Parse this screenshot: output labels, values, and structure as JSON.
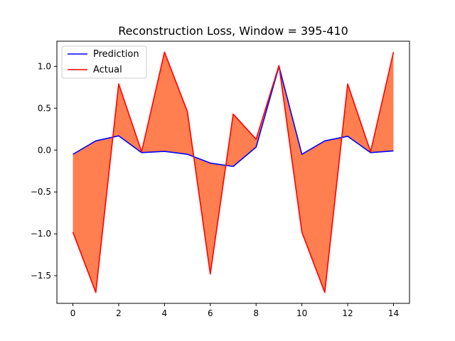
{
  "chart_data": {
    "type": "line",
    "title": "Reconstruction Loss, Window = 395-410",
    "xlabel": "",
    "ylabel": "",
    "x": [
      0,
      1,
      2,
      3,
      4,
      5,
      6,
      7,
      8,
      9,
      10,
      11,
      12,
      13,
      14
    ],
    "xlim": [
      -0.7,
      14.7
    ],
    "ylim": [
      -1.83,
      1.3
    ],
    "x_ticks": [
      0,
      2,
      4,
      6,
      8,
      10,
      12,
      14
    ],
    "x_tick_labels": [
      "0",
      "2",
      "4",
      "6",
      "8",
      "10",
      "12",
      "14"
    ],
    "y_ticks": [
      -1.5,
      -1.0,
      -0.5,
      0.0,
      0.5,
      1.0
    ],
    "y_tick_labels": [
      "−1.5",
      "−1.0",
      "−0.5",
      "0.0",
      "0.5",
      "1.0"
    ],
    "grid": false,
    "legend_position": "upper-left",
    "series": [
      {
        "name": "Prediction",
        "color": "#0000ff",
        "values": [
          -0.05,
          0.11,
          0.17,
          -0.03,
          -0.015,
          -0.05,
          -0.155,
          -0.195,
          0.035,
          1.0,
          -0.05,
          0.11,
          0.165,
          -0.03,
          -0.01
        ]
      },
      {
        "name": "Actual",
        "color": "#ff0000",
        "values": [
          -0.98,
          -1.7,
          0.79,
          -0.02,
          1.17,
          0.46,
          -1.48,
          0.43,
          0.13,
          1.01,
          -0.98,
          -1.7,
          0.79,
          -0.02,
          1.17
        ]
      }
    ],
    "fill_between": {
      "color": "#ff7f50",
      "series": [
        "Prediction",
        "Actual"
      ]
    }
  }
}
